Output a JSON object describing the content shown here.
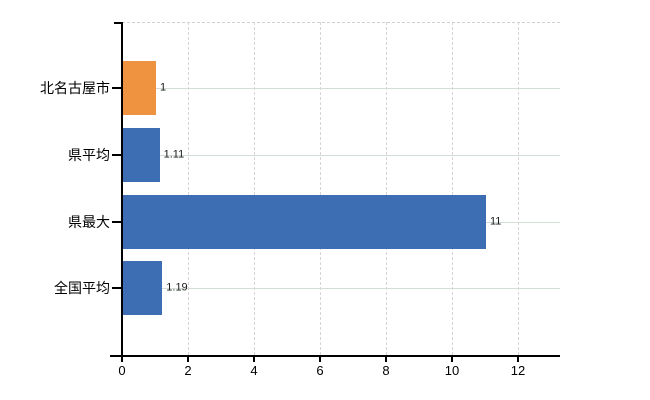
{
  "chart_data": {
    "type": "bar",
    "orientation": "horizontal",
    "title": "",
    "xlabel": "",
    "ylabel": "",
    "categories": [
      "北名古屋市",
      "県平均",
      "県最大",
      "全国平均"
    ],
    "values": [
      1,
      1.11,
      11,
      1.19
    ],
    "value_labels": [
      "1",
      "1.11",
      "11",
      "1.19"
    ],
    "bar_colors": [
      "#ef9340",
      "#3d6eb4",
      "#3d6eb4",
      "#3d6eb4"
    ],
    "xlim": [
      0,
      13.3
    ],
    "xticks": [
      0,
      2,
      4,
      6,
      8,
      10,
      12
    ],
    "grid": {
      "vertical": "dashed",
      "horizontal": "solid",
      "top_border": "dashed"
    },
    "legend": "none"
  },
  "colors": {
    "background": "#ffffff",
    "axis": "#000000",
    "vertical_grid": "#d8d3d9",
    "horizontal_grid": "#d3ddd3",
    "top_border": "#cfcfcf",
    "category_text": "#000000",
    "value_text": "#1a1a1a",
    "highlight_bar": "#ef9340",
    "default_bar": "#3d6eb4"
  }
}
